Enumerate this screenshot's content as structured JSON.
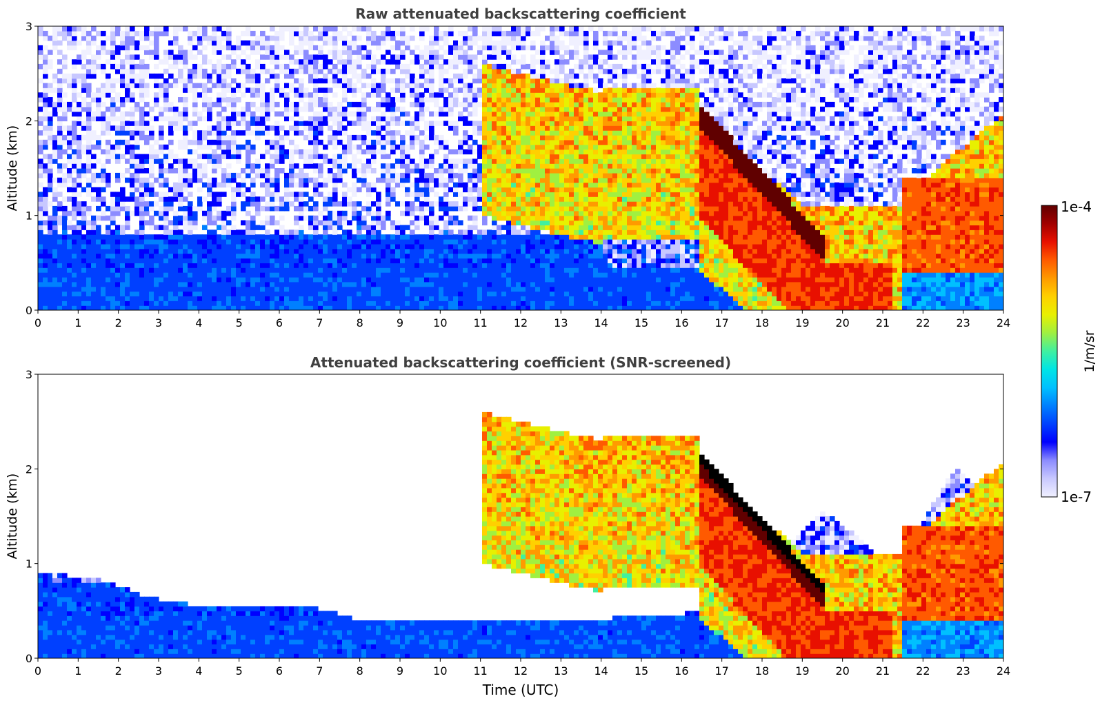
{
  "colors": {
    "colormap": [
      "#f0f0ff",
      "#c8c8ff",
      "#8c8cff",
      "#0000ff",
      "#0040ff",
      "#0080ff",
      "#00c0ff",
      "#00e5e5",
      "#40f0a0",
      "#a0f040",
      "#e8f000",
      "#ffd000",
      "#ff9a00",
      "#ff5a00",
      "#e81000",
      "#a00000",
      "#600000"
    ],
    "saturated": "#000000",
    "axis": "#000000",
    "title": "#404040"
  },
  "colorbar": {
    "label": "1/m/sr",
    "max_label": "1e-4",
    "min_label": "1e-7",
    "scale": "log",
    "vmin": 1e-07,
    "vmax": 0.0001
  },
  "xlabel": "Time (UTC)",
  "chart_data": [
    {
      "type": "heatmap",
      "title": "Raw attenuated backscattering coefficient",
      "xlabel": "",
      "ylabel": "Altitude (km)",
      "xlim": [
        0,
        24
      ],
      "ylim": [
        0,
        3
      ],
      "xticks": [
        "0",
        "1",
        "2",
        "3",
        "4",
        "5",
        "6",
        "7",
        "8",
        "9",
        "10",
        "11",
        "12",
        "13",
        "14",
        "15",
        "16",
        "17",
        "18",
        "19",
        "20",
        "21",
        "22",
        "23",
        "24"
      ],
      "yticks": [
        "0",
        "1",
        "2",
        "3"
      ],
      "features": [
        {
          "name": "noise_background",
          "altitude_km": [
            0,
            3
          ],
          "log10_value_range": [
            -6.8,
            -5.8
          ]
        },
        {
          "name": "boundary_layer",
          "time_utc": [
            0,
            19
          ],
          "altitude_km": [
            0,
            0.8
          ],
          "log10_value": -6.4
        },
        {
          "name": "elevated_aerosol",
          "time_utc": [
            11,
            24
          ],
          "altitude_km": [
            0.5,
            2.7
          ],
          "log10_value_range": [
            -5.5,
            -4.5
          ]
        },
        {
          "name": "cloud_layer",
          "time_utc": [
            16.5,
            19.5
          ],
          "altitude_top_km": [
            2.15,
            0.8
          ],
          "log10_value": -4.05
        },
        {
          "name": "nocturnal_layer",
          "time_utc": [
            19,
            21.2
          ],
          "altitude_km": [
            0,
            0.5
          ],
          "log10_value": -4.6
        }
      ]
    },
    {
      "type": "heatmap",
      "title": "Attenuated backscattering coefficient (SNR-screened)",
      "xlabel": "Time (UTC)",
      "ylabel": "Altitude (km)",
      "xlim": [
        0,
        24
      ],
      "ylim": [
        0,
        3
      ],
      "xticks": [
        "0",
        "1",
        "2",
        "3",
        "4",
        "5",
        "6",
        "7",
        "8",
        "9",
        "10",
        "11",
        "12",
        "13",
        "14",
        "15",
        "16",
        "17",
        "18",
        "19",
        "20",
        "21",
        "22",
        "23",
        "24"
      ],
      "yticks": [
        "0",
        "1",
        "2",
        "3"
      ],
      "screen_boundary_km": {
        "time_utc": [
          0,
          1.7,
          2.5,
          3.4,
          5.5,
          7.2,
          7.8,
          8.2,
          12,
          14,
          16,
          16.8,
          17.5,
          19.5,
          20.5,
          21.2,
          22,
          22.8,
          23.6,
          24
        ],
        "altitude_km": [
          0.92,
          0.82,
          0.68,
          0.58,
          0.55,
          0.52,
          0.42,
          0.38,
          0.38,
          0.42,
          0.45,
          0.6,
          0.65,
          1.55,
          1.25,
          0.95,
          1.45,
          2.0,
          1.7,
          1.5
        ]
      },
      "saturated_layer": {
        "time_utc": [
          16.5,
          19.5
        ],
        "altitude_top_km": [
          2.15,
          0.8
        ]
      }
    }
  ]
}
